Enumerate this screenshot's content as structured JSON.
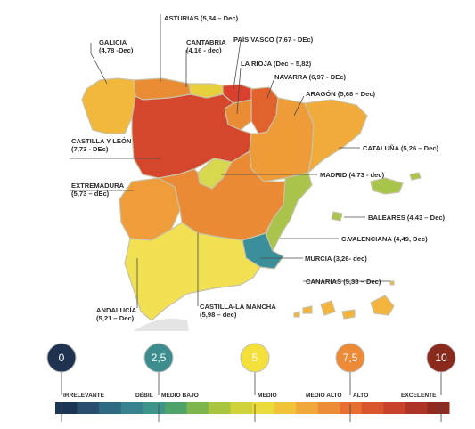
{
  "regions": [
    {
      "name": "Galicia",
      "lines": [
        "GALICIA",
        "(4,78 -Dec)"
      ],
      "color": "#f2b83c"
    },
    {
      "name": "Asturias",
      "lines": [
        "ASTURIAS (5,84 – Dec)"
      ],
      "color": "#ea8c34"
    },
    {
      "name": "Cantabria",
      "lines": [
        "CANTABRIA",
        "(4,16 - dec)"
      ],
      "color": "#e8d03c"
    },
    {
      "name": "País Vasco",
      "lines": [
        "PAÍS VASCO (7,67 - DEc)"
      ],
      "color": "#d9412e"
    },
    {
      "name": "La Rioja",
      "lines": [
        "LA RIOJA (Dec – 5,82)"
      ],
      "color": "#ea8c34"
    },
    {
      "name": "Navarra",
      "lines": [
        "NAVARRA (6,97 - DEc)"
      ],
      "color": "#e2622e"
    },
    {
      "name": "Aragón",
      "lines": [
        "ARAGÓN (5,68 – Dec)"
      ],
      "color": "#ee9c38"
    },
    {
      "name": "Cataluña",
      "lines": [
        "CATALUÑA (5,26 – Dec)"
      ],
      "color": "#f1ab3b"
    },
    {
      "name": "Castilla y León",
      "lines": [
        "CASTILLA Y LEÓN",
        "(7,73 - DEc)"
      ],
      "color": "#d5472c"
    },
    {
      "name": "Madrid",
      "lines": [
        "MADRID (4,73 - dec)"
      ],
      "color": "#d8d84e"
    },
    {
      "name": "Extremadura",
      "lines": [
        "EXTREMADURA",
        "(5,73 – dEc)"
      ],
      "color": "#ef9d3a"
    },
    {
      "name": "Baleares",
      "lines": [
        "BALEARES (4,43 – Dec)"
      ],
      "color": "#a6c54a"
    },
    {
      "name": "C.Valenciana",
      "lines": [
        "C.VALENCIANA (4,49, Dec)"
      ],
      "color": "#a9c34b"
    },
    {
      "name": "Castilla-La Mancha",
      "lines": [
        "CASTILLA-LA MANCHA",
        "(5,98 – dec)"
      ],
      "color": "#ea8a34"
    },
    {
      "name": "Murcia",
      "lines": [
        "MURCIA (3,26- dec)"
      ],
      "color": "#3a8f9a"
    },
    {
      "name": "Canarias",
      "lines": [
        "CANARIAS (5,38 – Dec)"
      ],
      "color": "#f2b43c"
    },
    {
      "name": "Andalucía",
      "lines": [
        "ANDALUCÍA",
        "(5,21 – Dec)"
      ],
      "color": "#f1e152"
    }
  ],
  "legend": {
    "circles": [
      {
        "value": "0",
        "color": "#1f3350"
      },
      {
        "value": "2,5",
        "color": "#3d8d8f"
      },
      {
        "value": "5",
        "color": "#f3e03a"
      },
      {
        "value": "7,5",
        "color": "#ec8a37"
      },
      {
        "value": "10",
        "color": "#8a2a1c"
      }
    ],
    "categories": [
      "IRRELEVANTE",
      "DÉBIL",
      "MEDIO BAJO",
      "MEDIO",
      "MEDIO ALTO",
      "ALTO",
      "EXCELENTE"
    ],
    "scale_colors": [
      "#1d3554",
      "#2a4f6e",
      "#2f6a83",
      "#36828e",
      "#3d9488",
      "#4ea36a",
      "#7cb64d",
      "#a9c540",
      "#cfd23a",
      "#eadb3a",
      "#f1c33a",
      "#f1a73a",
      "#ed8c36",
      "#e66f31",
      "#d9552d",
      "#c8412a",
      "#ae3425",
      "#902b1f"
    ]
  }
}
